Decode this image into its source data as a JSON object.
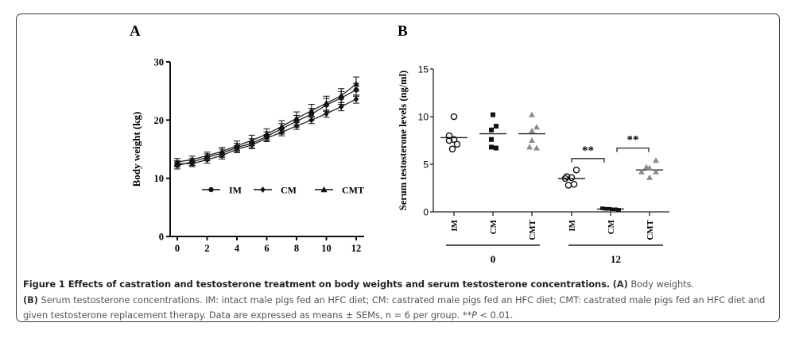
{
  "figure": {
    "caption_title": "Figure 1 Effects of castration and testosterone treatment on body weights and serum testosterone concentrations.",
    "caption_a_label": "(A)",
    "caption_a_text": "Body weights.",
    "caption_b_label": "(B)",
    "caption_b_text": "Serum testosterone concentrations. IM: intact male pigs fed an HFC diet; CM: castrated male pigs fed an HFC diet; CMT: castrated male pigs fed an HFC diet and given testosterone replacement therapy. Data are expressed as means ± SEMs, n = 6 per group. **",
    "caption_p": "P",
    "caption_end": " < 0.01."
  },
  "chart_data": [
    {
      "panel": "A",
      "type": "line",
      "title": "",
      "xlabel": "",
      "ylabel": "Body weight (kg)",
      "x": [
        0,
        1,
        2,
        3,
        4,
        5,
        6,
        7,
        8,
        9,
        10,
        11,
        12
      ],
      "xticks": [
        "0",
        "2",
        "4",
        "6",
        "8",
        "10",
        "12"
      ],
      "xlim": [
        -0.5,
        12.6
      ],
      "yticks": [
        "0",
        "10",
        "20",
        "30"
      ],
      "ylim": [
        0,
        30
      ],
      "legend_position": "center-right",
      "series": [
        {
          "name": "IM",
          "marker": "circle",
          "values": [
            12.2,
            12.8,
            13.6,
            14.3,
            15.3,
            16.0,
            17.2,
            18.5,
            19.8,
            21.0,
            22.6,
            23.8,
            25.2
          ],
          "sem": [
            0.6,
            0.6,
            0.6,
            0.7,
            0.7,
            0.8,
            0.8,
            0.9,
            1.0,
            1.0,
            1.1,
            1.1,
            1.1
          ]
        },
        {
          "name": "CM",
          "marker": "diamond",
          "values": [
            12.5,
            12.5,
            13.2,
            13.9,
            15.0,
            15.7,
            16.9,
            17.9,
            19.0,
            20.0,
            21.1,
            22.3,
            23.6
          ],
          "sem": [
            0.5,
            0.5,
            0.6,
            0.6,
            0.6,
            0.6,
            0.6,
            0.6,
            0.6,
            0.6,
            0.6,
            0.7,
            0.7
          ]
        },
        {
          "name": "CMT",
          "marker": "triangle",
          "values": [
            12.8,
            13.2,
            13.9,
            14.6,
            15.6,
            16.5,
            17.6,
            18.9,
            20.3,
            21.6,
            22.9,
            24.2,
            26.2
          ],
          "sem": [
            0.6,
            0.6,
            0.6,
            0.7,
            0.8,
            0.9,
            0.9,
            1.0,
            1.1,
            1.1,
            1.2,
            1.2,
            1.2
          ]
        }
      ]
    },
    {
      "panel": "B",
      "type": "scatter",
      "title": "",
      "ylabel": "Serum testosterone levels (ng/ml)",
      "yticks": [
        "0",
        "5",
        "10",
        "15"
      ],
      "ylim": [
        0,
        15
      ],
      "categories": [
        "IM",
        "CM",
        "CMT",
        "IM",
        "CM",
        "CMT"
      ],
      "groups": [
        {
          "label": "0",
          "categories": [
            0,
            1,
            2
          ]
        },
        {
          "label": "12",
          "categories": [
            3,
            4,
            5
          ]
        }
      ],
      "series": [
        {
          "category": "IM",
          "group": "0",
          "marker": "open-circle",
          "color": "#000000",
          "mean": 7.8,
          "points": [
            10.0,
            8.0,
            7.6,
            7.5,
            7.1,
            6.6
          ]
        },
        {
          "category": "CM",
          "group": "0",
          "marker": "square",
          "color": "#000000",
          "mean": 8.2,
          "points": [
            10.2,
            9.0,
            8.6,
            7.6,
            6.8,
            6.7
          ]
        },
        {
          "category": "CMT",
          "group": "0",
          "marker": "triangle",
          "color": "#8c8c8c",
          "mean": 8.2,
          "points": [
            10.2,
            8.9,
            8.5,
            7.5,
            6.8,
            6.7
          ]
        },
        {
          "category": "IM",
          "group": "12",
          "marker": "open-circle",
          "color": "#000000",
          "mean": 3.5,
          "points": [
            4.4,
            3.7,
            3.6,
            3.5,
            2.9,
            2.8
          ]
        },
        {
          "category": "CM",
          "group": "12",
          "marker": "square",
          "color": "#000000",
          "mean": 0.3,
          "points": [
            0.35,
            0.3,
            0.3,
            0.25,
            0.25,
            0.2
          ]
        },
        {
          "category": "CMT",
          "group": "12",
          "marker": "triangle",
          "color": "#8c8c8c",
          "mean": 4.4,
          "points": [
            5.4,
            4.7,
            4.6,
            4.2,
            4.2,
            3.6
          ]
        }
      ],
      "annotations": [
        {
          "text": "**",
          "between": [
            3,
            4
          ],
          "bracket_y": 5.6
        },
        {
          "text": "**",
          "between": [
            4,
            5
          ],
          "bracket_y": 6.7
        }
      ]
    }
  ],
  "panels": {
    "a_label": "A",
    "b_label": "B"
  }
}
